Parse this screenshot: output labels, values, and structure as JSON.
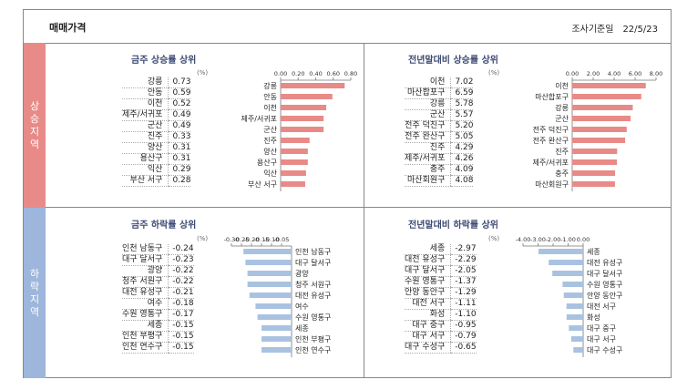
{
  "header": {
    "title": "매매가격",
    "date_label": "조사기준일",
    "date_value": "22/5/23"
  },
  "side": {
    "rise": "상승지역",
    "fall": "하락지역"
  },
  "unit": "(%)",
  "colors": {
    "rise": "#e88a87",
    "fall": "#a9c2e0"
  },
  "chart_data": [
    {
      "type": "bar",
      "orientation": "horizontal",
      "title": "금주 상승률 상위",
      "categories": [
        "강릉",
        "안동",
        "이천",
        "제주/서귀포",
        "군산",
        "진주",
        "양산",
        "용산구",
        "익산",
        "부산 서구"
      ],
      "values": [
        0.73,
        0.59,
        0.52,
        0.49,
        0.49,
        0.33,
        0.31,
        0.31,
        0.29,
        0.28
      ],
      "display_values": [
        "0.73",
        "0.59",
        "0.52",
        "0.49",
        "0.49",
        "0.33",
        "0.31",
        "0.31",
        "0.29",
        "0.28"
      ],
      "xlim": [
        0,
        0.8
      ],
      "ticks": [
        0,
        0.2,
        0.4,
        0.6,
        0.8
      ],
      "tick_labels": [
        "0.00",
        "0.20",
        "0.40",
        "0.60",
        "0.80"
      ]
    },
    {
      "type": "bar",
      "orientation": "horizontal",
      "title": "전년말대비 상승률 상위",
      "categories": [
        "이천",
        "마산합포구",
        "강릉",
        "군산",
        "전주 덕진구",
        "전주 완산구",
        "진주",
        "제주/서귀포",
        "충주",
        "마산회원구"
      ],
      "values": [
        7.02,
        6.59,
        5.78,
        5.57,
        5.2,
        5.05,
        4.29,
        4.26,
        4.09,
        4.08
      ],
      "display_values": [
        "7.02",
        "6.59",
        "5.78",
        "5.57",
        "5.20",
        "5.05",
        "4.29",
        "4.26",
        "4.09",
        "4.08"
      ],
      "xlim": [
        0,
        8
      ],
      "ticks": [
        0,
        2,
        4,
        6,
        8
      ],
      "tick_labels": [
        "0.00",
        "2.00",
        "4.00",
        "6.00",
        "8.00"
      ]
    },
    {
      "type": "bar",
      "orientation": "horizontal",
      "title": "금주 하락률 상위",
      "categories": [
        "인천 남동구",
        "대구 달서구",
        "광양",
        "청주 서원구",
        "대전 유성구",
        "여수",
        "수원 영통구",
        "세종",
        "인천 부평구",
        "인천 연수구"
      ],
      "values": [
        -0.24,
        -0.23,
        -0.22,
        -0.22,
        -0.21,
        -0.18,
        -0.17,
        -0.15,
        -0.15,
        -0.15
      ],
      "display_values": [
        "-0.24",
        "-0.23",
        "-0.22",
        "-0.22",
        "-0.21",
        "-0.18",
        "-0.17",
        "-0.15",
        "-0.15",
        "-0.15"
      ],
      "xlim": [
        -0.3,
        0
      ],
      "ticks": [
        -0.3,
        -0.25,
        -0.2,
        -0.15,
        -0.1,
        -0.05
      ],
      "tick_labels": [
        "-0.30",
        "-0.25",
        "-0.20",
        "-0.15",
        "-0.10",
        "-0.05"
      ]
    },
    {
      "type": "bar",
      "orientation": "horizontal",
      "title": "전년말대비 하락률 상위",
      "categories": [
        "세종",
        "대전 유성구",
        "대구 달서구",
        "수원 영통구",
        "안양 동안구",
        "대전 서구",
        "화성",
        "대구 중구",
        "대구 서구",
        "대구 수성구"
      ],
      "values": [
        -2.97,
        -2.29,
        -2.05,
        -1.37,
        -1.29,
        -1.11,
        -1.1,
        -0.95,
        -0.79,
        -0.65
      ],
      "display_values": [
        "-2.97",
        "-2.29",
        "-2.05",
        "-1.37",
        "-1.29",
        "-1.11",
        "-1.10",
        "-0.95",
        "-0.79",
        "-0.65"
      ],
      "xlim": [
        -4,
        0
      ],
      "ticks": [
        -4,
        -3,
        -2,
        -1,
        0
      ],
      "tick_labels": [
        "-4.00",
        "-3.00",
        "-2.00",
        "-1.00",
        "0.00"
      ]
    }
  ]
}
